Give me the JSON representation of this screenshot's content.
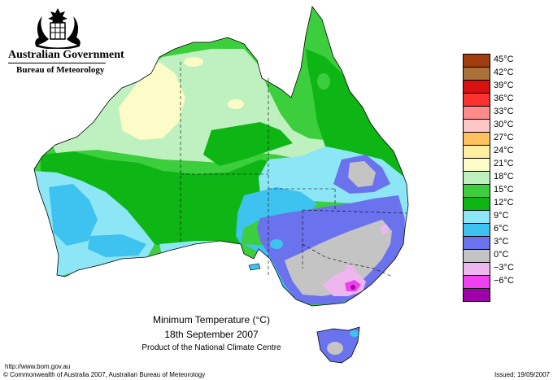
{
  "header": {
    "government": "Australian Government",
    "bureau": "Bureau of Meteorology"
  },
  "crest_icon": "coat-of-arms-icon",
  "map": {
    "title": "Minimum Temperature (°C)",
    "date": "18th September 2007",
    "product": "Product of the National Climate Centre",
    "colors": {
      "ocean": "#ffffff",
      "c15_18": "#3dce3d",
      "c12_15": "#0db515",
      "c18_21": "#bff0bf",
      "c21_24": "#fcfcc8",
      "c9_12": "#8de6f5",
      "c6_9": "#3ec2f0",
      "c3_6": "#6a72ee",
      "c0_3": "#c4c4c4",
      "cm3_0": "#eeb6ee",
      "cm6_m3": "#f040f0",
      "cm9_m6": "#a000a8"
    }
  },
  "legend": {
    "items": [
      {
        "label": "45°C",
        "color": "#a23d0f"
      },
      {
        "label": "42°C",
        "color": "#a8723a"
      },
      {
        "label": "39°C",
        "color": "#d81010"
      },
      {
        "label": "36°C",
        "color": "#ff3030"
      },
      {
        "label": "33°C",
        "color": "#ff8a8a"
      },
      {
        "label": "30°C",
        "color": "#ffc8c8"
      },
      {
        "label": "27°C",
        "color": "#ffc060"
      },
      {
        "label": "24°C",
        "color": "#ffeea0"
      },
      {
        "label": "21°C",
        "color": "#fcfcc8"
      },
      {
        "label": "18°C",
        "color": "#bff0bf"
      },
      {
        "label": "15°C",
        "color": "#3dce3d"
      },
      {
        "label": "12°C",
        "color": "#0db515"
      },
      {
        "label": "9°C",
        "color": "#8de6f5"
      },
      {
        "label": "6°C",
        "color": "#3ec2f0"
      },
      {
        "label": "3°C",
        "color": "#6a72ee"
      },
      {
        "label": "0°C",
        "color": "#c4c4c4"
      },
      {
        "label": "−3°C",
        "color": "#eeb6ee"
      },
      {
        "label": "−6°C",
        "color": "#f040f0"
      },
      {
        "label": "",
        "color": "#a000a8"
      }
    ]
  },
  "footer": {
    "url": "http://www.bom.gov.au",
    "copyright": "© Commonwealth of Australia 2007, Australian Bureau of Meteorology",
    "issued": "Issued: 19/09/2007"
  }
}
